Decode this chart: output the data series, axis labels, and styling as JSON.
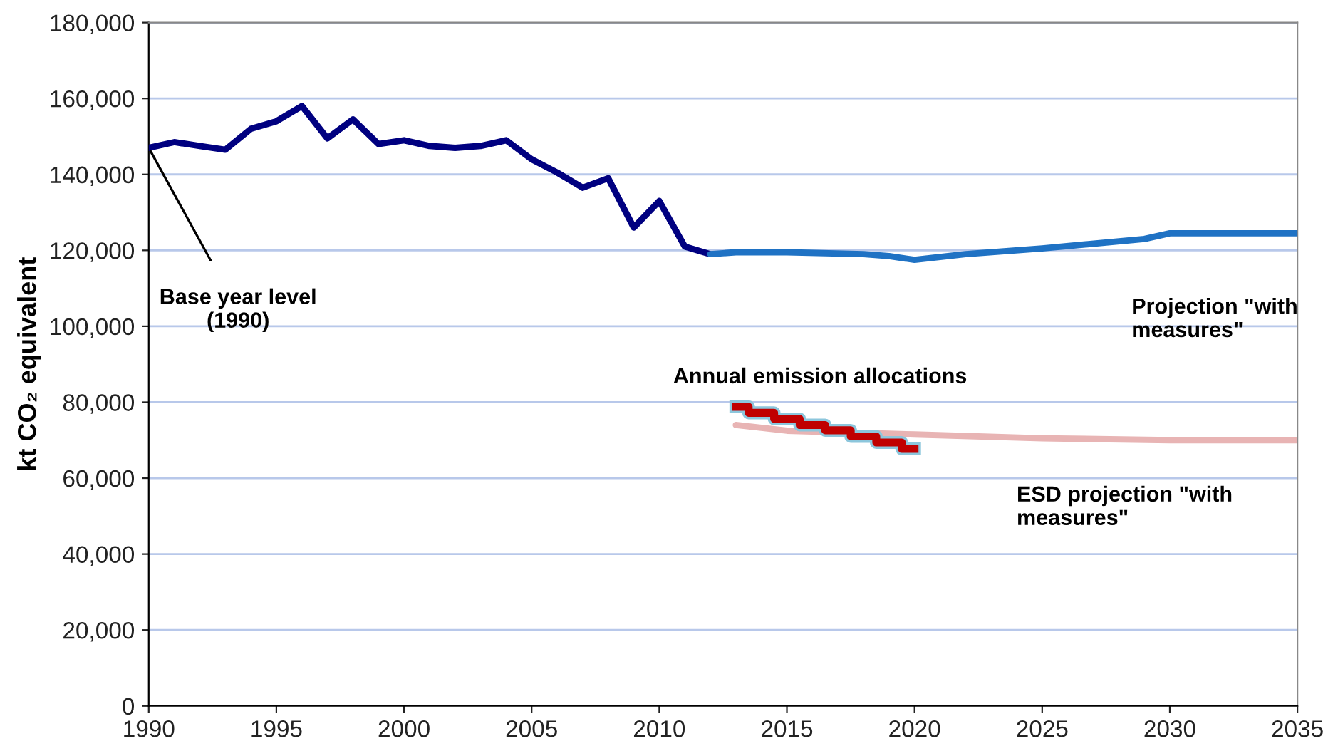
{
  "chart_data": {
    "type": "line",
    "ylabel": "kt CO₂ equivalent",
    "xlim": [
      1990,
      2035
    ],
    "xticks": [
      1990,
      1995,
      2000,
      2005,
      2010,
      2015,
      2020,
      2025,
      2030,
      2035
    ],
    "ylim": [
      0,
      180000
    ],
    "yticks": [
      {
        "value": 0,
        "label": "0"
      },
      {
        "value": 20000,
        "label": "20,000"
      },
      {
        "value": 40000,
        "label": "40,000"
      },
      {
        "value": 60000,
        "label": "60,000"
      },
      {
        "value": 80000,
        "label": "80,000"
      },
      {
        "value": 100000,
        "label": "100,000"
      },
      {
        "value": 120000,
        "label": "120,000"
      },
      {
        "value": 140000,
        "label": "140,000"
      },
      {
        "value": 160000,
        "label": "160,000"
      },
      {
        "value": 180000,
        "label": "180,000"
      }
    ],
    "grid": "y",
    "legend": false,
    "series": [
      {
        "color": "#000080",
        "x": [
          1990,
          1991,
          1992,
          1993,
          1994,
          1995,
          1996,
          1997,
          1998,
          1999,
          2000,
          2001,
          2002,
          2003,
          2004,
          2005,
          2006,
          2007,
          2008,
          2009,
          2010,
          2011,
          2012
        ],
        "values": [
          147000,
          148500,
          147500,
          146500,
          152000,
          154000,
          158000,
          149500,
          154500,
          148000,
          149000,
          147500,
          147000,
          147500,
          149000,
          144000,
          140500,
          136500,
          139000,
          126000,
          133000,
          121000,
          119000
        ]
      },
      {
        "name": "Projection \"with measures\"",
        "color": "#1f72c4",
        "x": [
          2012,
          2013,
          2015,
          2018,
          2019,
          2020,
          2022,
          2025,
          2029,
          2030,
          2035
        ],
        "values": [
          119000,
          119500,
          119500,
          119000,
          118500,
          117500,
          119000,
          120500,
          123000,
          124500,
          124500
        ]
      },
      {
        "name": "ESD projection \"with measures\"",
        "color": "#e8b4b4",
        "x": [
          2013,
          2015,
          2020,
          2025,
          2030,
          2035
        ],
        "values": [
          74000,
          72500,
          71500,
          70500,
          70000,
          70000
        ]
      },
      {
        "name": "Annual emission allocations",
        "type": "step",
        "color": "#c00000",
        "x": [
          2013,
          2014,
          2015,
          2016,
          2017,
          2018,
          2019,
          2020
        ],
        "values": [
          78800,
          77200,
          75600,
          74000,
          72600,
          71000,
          69400,
          67700
        ]
      }
    ],
    "annotations": [
      {
        "text": "Base year level\n(1990)",
        "x": 1990,
        "y": 147000
      }
    ]
  }
}
